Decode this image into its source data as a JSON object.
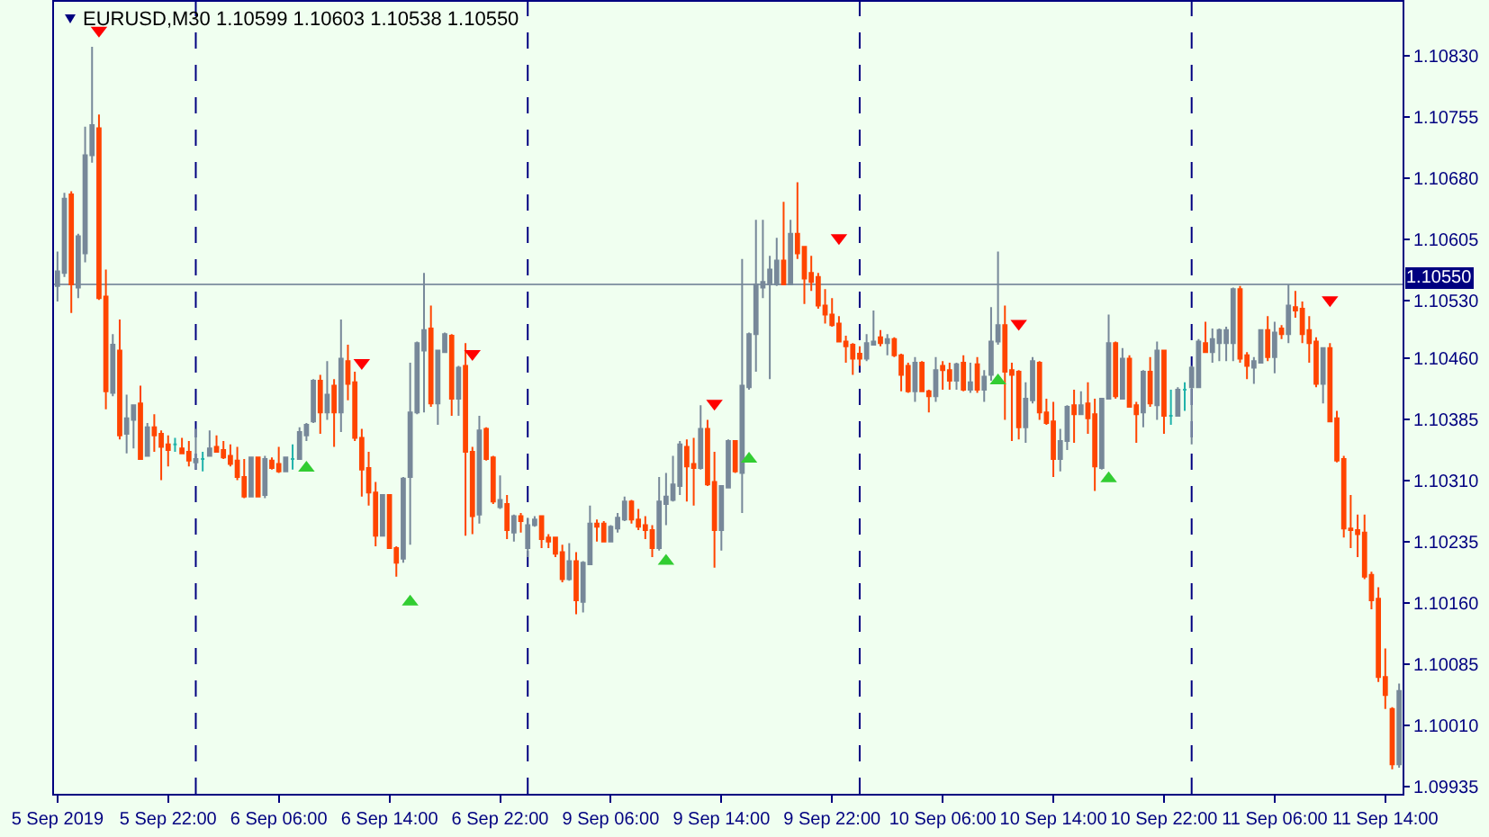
{
  "chart_data": {
    "type": "candlestick",
    "title": "EURUSD,M30 1.10599 1.10603 1.10538 1.10550",
    "categories": [
      "5 Sep 2019",
      null,
      null,
      null,
      null,
      null,
      null,
      null,
      null,
      null,
      null,
      null,
      null,
      null,
      null,
      null,
      "5 Sep 22:00",
      null,
      null,
      null,
      null,
      null,
      null,
      null,
      null,
      null,
      null,
      null,
      null,
      null,
      null,
      null,
      "6 Sep 06:00",
      null,
      null,
      null,
      null,
      null,
      null,
      null,
      null,
      null,
      null,
      null,
      null,
      null,
      null,
      null,
      "6 Sep 14:00",
      null,
      null,
      null,
      null,
      null,
      null,
      null,
      null,
      null,
      null,
      null,
      null,
      null,
      null,
      null,
      "6 Sep 22:00",
      null,
      null,
      null,
      null,
      null,
      null,
      null,
      null,
      null,
      null,
      null,
      null,
      null,
      null,
      null,
      "9 Sep 06:00",
      null,
      null,
      null,
      null,
      null,
      null,
      null,
      null,
      null,
      null,
      null,
      null,
      null,
      null,
      null,
      "9 Sep 14:00",
      null,
      null,
      null,
      null,
      null,
      null,
      null,
      null,
      null,
      null,
      null,
      null,
      null,
      null,
      null,
      "9 Sep 22:00",
      null,
      null,
      null,
      null,
      null,
      null,
      null,
      null,
      null,
      null,
      null,
      null,
      null,
      null,
      null,
      "10 Sep 06:00",
      null,
      null,
      null,
      null,
      null,
      null,
      null,
      null,
      null,
      null,
      null,
      null,
      null,
      null,
      null,
      "10 Sep 14:00",
      null,
      null,
      null,
      null,
      null,
      null,
      null,
      null,
      null,
      null,
      null,
      null,
      null,
      null,
      null,
      "10 Sep 22:00",
      null,
      null,
      null,
      null,
      null,
      null,
      null,
      null,
      null,
      null,
      null,
      null,
      null,
      null,
      null,
      "11 Sep 06:00",
      null,
      null,
      null,
      null,
      null,
      null,
      null,
      null,
      null,
      null,
      null,
      null,
      null,
      null,
      null,
      "11 Sep 14:00",
      null,
      null
    ],
    "ohlc": [
      [
        1.10548,
        1.1059,
        1.10529,
        1.10566
      ],
      [
        1.10564,
        1.10662,
        1.10559,
        1.10655
      ],
      [
        1.1066,
        1.10664,
        1.10515,
        1.1055
      ],
      [
        1.10546,
        1.10612,
        1.10533,
        1.10609
      ],
      [
        1.10588,
        1.10743,
        1.10577,
        1.10708
      ],
      [
        1.10708,
        1.10841,
        1.10699,
        1.10745
      ],
      [
        1.10741,
        1.10758,
        1.10531,
        1.10533
      ],
      [
        1.10535,
        1.10568,
        1.10397,
        1.10419
      ],
      [
        1.10417,
        1.10489,
        1.10413,
        1.10476
      ],
      [
        1.10469,
        1.10507,
        1.1036,
        1.10365
      ],
      [
        1.10367,
        1.10415,
        1.10343,
        1.10386
      ],
      [
        1.10384,
        1.10402,
        1.10349,
        1.10402
      ],
      [
        1.10404,
        1.10426,
        1.10336,
        1.10336
      ],
      [
        1.1034,
        1.1038,
        1.1034,
        1.10375
      ],
      [
        1.10375,
        1.10391,
        1.10345,
        1.10365
      ],
      [
        1.10367,
        1.10371,
        1.1031,
        1.10351
      ],
      [
        1.10354,
        1.10365,
        1.10327,
        1.10347
      ],
      [
        1.10354,
        1.10362,
        1.10345,
        1.10354
      ],
      [
        1.10349,
        1.10362,
        1.10343,
        1.10343
      ],
      [
        1.10345,
        1.10358,
        1.10327,
        1.10334
      ],
      [
        1.10332,
        1.10373,
        1.10323,
        1.10336
      ],
      [
        1.10336,
        1.10345,
        1.10321,
        1.10336
      ],
      [
        1.1034,
        1.10371,
        1.1034,
        1.10349
      ],
      [
        1.10351,
        1.10365,
        1.10345,
        1.10345
      ],
      [
        1.10347,
        1.10358,
        1.10336,
        1.10338
      ],
      [
        1.1034,
        1.10354,
        1.10327,
        1.1033
      ],
      [
        1.10334,
        1.10351,
        1.1031,
        1.10314
      ],
      [
        1.10314,
        1.10336,
        1.10288,
        1.1029
      ],
      [
        1.1029,
        1.10338,
        1.1029,
        1.10338
      ],
      [
        1.10338,
        1.10338,
        1.1029,
        1.1029
      ],
      [
        1.10292,
        1.1034,
        1.10288,
        1.10336
      ],
      [
        1.10334,
        1.10338,
        1.10323,
        1.10325
      ],
      [
        1.1033,
        1.10351,
        1.10319,
        1.10321
      ],
      [
        1.10321,
        1.10338,
        1.10321,
        1.10338
      ],
      [
        1.10336,
        1.10354,
        1.10323,
        1.10336
      ],
      [
        1.10336,
        1.10375,
        1.10336,
        1.10369
      ],
      [
        1.10365,
        1.1038,
        1.10358,
        1.10378
      ],
      [
        1.10382,
        1.10434,
        1.1038,
        1.10432
      ],
      [
        1.10432,
        1.10439,
        1.10367,
        1.10393
      ],
      [
        1.10393,
        1.10456,
        1.10384,
        1.10415
      ],
      [
        1.10426,
        1.10434,
        1.10351,
        1.10393
      ],
      [
        1.10393,
        1.10507,
        1.10369,
        1.10459
      ],
      [
        1.10456,
        1.10476,
        1.10408,
        1.10428
      ],
      [
        1.1043,
        1.10443,
        1.10358,
        1.10362
      ],
      [
        1.10362,
        1.10373,
        1.1029,
        1.10323
      ],
      [
        1.10325,
        1.10345,
        1.10279,
        1.10295
      ],
      [
        1.10295,
        1.10308,
        1.10229,
        1.10242
      ],
      [
        1.10242,
        1.10292,
        1.10242,
        1.10292
      ],
      [
        1.10292,
        1.10292,
        1.10227,
        1.10227
      ],
      [
        1.10227,
        1.10229,
        1.10192,
        1.10209
      ],
      [
        1.10214,
        1.10314,
        1.10209,
        1.10312
      ],
      [
        1.10314,
        1.10454,
        1.10231,
        1.10393
      ],
      [
        1.10393,
        1.1048,
        1.10391,
        1.10478
      ],
      [
        1.10469,
        1.10564,
        1.10393,
        1.10494
      ],
      [
        1.10496,
        1.10524,
        1.104,
        1.10404
      ],
      [
        1.10404,
        1.10469,
        1.10378,
        1.10469
      ],
      [
        1.10467,
        1.10491,
        1.10467,
        1.10489
      ],
      [
        1.10487,
        1.10489,
        1.10389,
        1.1041
      ],
      [
        1.1041,
        1.1045,
        1.10389,
        1.10448
      ],
      [
        1.1045,
        1.10478,
        1.10242,
        1.10345
      ],
      [
        1.10345,
        1.10351,
        1.10244,
        1.10266
      ],
      [
        1.10268,
        1.10389,
        1.10257,
        1.10371
      ],
      [
        1.10373,
        1.10375,
        1.10334,
        1.10336
      ],
      [
        1.10338,
        1.1034,
        1.10281,
        1.10284
      ],
      [
        1.10277,
        1.10316,
        1.10275,
        1.10286
      ],
      [
        1.10281,
        1.10292,
        1.10238,
        1.10249
      ],
      [
        1.10246,
        1.10268,
        1.10235,
        1.10266
      ],
      [
        1.10266,
        1.1027,
        1.10246,
        1.1026
      ],
      [
        1.10227,
        1.10264,
        1.10216,
        1.10255
      ],
      [
        1.10255,
        1.10266,
        1.10253,
        1.10262
      ],
      [
        1.10266,
        1.10266,
        1.10227,
        1.10238
      ],
      [
        1.1024,
        1.10244,
        1.10227,
        1.10235
      ],
      [
        1.1024,
        1.1024,
        1.10216,
        1.1022
      ],
      [
        1.10222,
        1.10231,
        1.10185,
        1.10189
      ],
      [
        1.10189,
        1.10233,
        1.10187,
        1.10211
      ],
      [
        1.10211,
        1.10222,
        1.10146,
        1.10163
      ],
      [
        1.10161,
        1.10211,
        1.10148,
        1.10209
      ],
      [
        1.10207,
        1.10279,
        1.10207,
        1.10257
      ],
      [
        1.10257,
        1.10262,
        1.10235,
        1.10253
      ],
      [
        1.10257,
        1.1026,
        1.10235,
        1.10235
      ],
      [
        1.10235,
        1.10255,
        1.10235,
        1.10253
      ],
      [
        1.10251,
        1.1027,
        1.10246,
        1.10264
      ],
      [
        1.10262,
        1.1029,
        1.1026,
        1.10284
      ],
      [
        1.10284,
        1.10286,
        1.10257,
        1.10262
      ],
      [
        1.10262,
        1.10275,
        1.10249,
        1.10253
      ],
      [
        1.10255,
        1.10266,
        1.10238,
        1.10249
      ],
      [
        1.10249,
        1.10255,
        1.10216,
        1.10227
      ],
      [
        1.10227,
        1.10314,
        1.10224,
        1.10284
      ],
      [
        1.10281,
        1.10319,
        1.10255,
        1.1029
      ],
      [
        1.10286,
        1.1034,
        1.10284,
        1.10305
      ],
      [
        1.10303,
        1.10358,
        1.10292,
        1.10354
      ],
      [
        1.10351,
        1.1036,
        1.10284,
        1.10327
      ],
      [
        1.1033,
        1.10362,
        1.10279,
        1.10325
      ],
      [
        1.10325,
        1.10402,
        1.10323,
        1.10373
      ],
      [
        1.10373,
        1.10384,
        1.10303,
        1.10305
      ],
      [
        1.10308,
        1.10345,
        1.10203,
        1.10249
      ],
      [
        1.10249,
        1.10303,
        1.10224,
        1.10303
      ],
      [
        1.10301,
        1.1036,
        1.10301,
        1.10358
      ],
      [
        1.10358,
        1.10358,
        1.10319,
        1.10321
      ],
      [
        1.10319,
        1.10581,
        1.1027,
        1.10426
      ],
      [
        1.10424,
        1.10491,
        1.10421,
        1.10489
      ],
      [
        1.10489,
        1.10629,
        1.10443,
        1.1055
      ],
      [
        1.10546,
        1.10629,
        1.10533,
        1.10553
      ],
      [
        1.1055,
        1.10585,
        1.10434,
        1.10568
      ],
      [
        1.1055,
        1.10607,
        1.10548,
        1.10579
      ],
      [
        1.10579,
        1.10651,
        1.1055,
        1.1055
      ],
      [
        1.1055,
        1.10629,
        1.1055,
        1.10612
      ],
      [
        1.10612,
        1.10675,
        1.10581,
        1.10588
      ],
      [
        1.10596,
        1.10596,
        1.10526,
        1.10557
      ],
      [
        1.10564,
        1.10585,
        1.10542,
        1.10553
      ],
      [
        1.10559,
        1.10564,
        1.1052,
        1.10524
      ],
      [
        1.10524,
        1.10544,
        1.10502,
        1.10513
      ],
      [
        1.10513,
        1.10533,
        1.10498,
        1.105
      ],
      [
        1.10502,
        1.10511,
        1.1048,
        1.1048
      ],
      [
        1.1048,
        1.10487,
        1.10454,
        1.10474
      ],
      [
        1.10476,
        1.10478,
        1.10439,
        1.10459
      ],
      [
        1.10465,
        1.10474,
        1.1045,
        1.10459
      ],
      [
        1.10459,
        1.10489,
        1.10456,
        1.10478
      ],
      [
        1.10476,
        1.10518,
        1.10476,
        1.1048
      ],
      [
        1.10485,
        1.10494,
        1.10474,
        1.10478
      ],
      [
        1.10478,
        1.10489,
        1.10463,
        1.10483
      ],
      [
        1.10483,
        1.10485,
        1.10461,
        1.10463
      ],
      [
        1.10463,
        1.10465,
        1.10419,
        1.10439
      ],
      [
        1.1045,
        1.10454,
        1.10417,
        1.10419
      ],
      [
        1.10419,
        1.10461,
        1.10406,
        1.10454
      ],
      [
        1.10454,
        1.10456,
        1.10419,
        1.10419
      ],
      [
        1.10419,
        1.10421,
        1.10393,
        1.10413
      ],
      [
        1.10413,
        1.10461,
        1.10406,
        1.10445
      ],
      [
        1.1045,
        1.10456,
        1.10421,
        1.10445
      ],
      [
        1.10445,
        1.10454,
        1.10421,
        1.10432
      ],
      [
        1.10432,
        1.10454,
        1.10421,
        1.10452
      ],
      [
        1.10454,
        1.10463,
        1.10419,
        1.10421
      ],
      [
        1.10421,
        1.10454,
        1.10417,
        1.1043
      ],
      [
        1.10452,
        1.10461,
        1.10417,
        1.10421
      ],
      [
        1.10421,
        1.10445,
        1.10406,
        1.10437
      ],
      [
        1.10439,
        1.10522,
        1.10432,
        1.1048
      ],
      [
        1.1048,
        1.1059,
        1.10476,
        1.105
      ],
      [
        1.105,
        1.10524,
        1.10384,
        1.10443
      ],
      [
        1.10445,
        1.10454,
        1.10358,
        1.10439
      ],
      [
        1.10443,
        1.10445,
        1.1036,
        1.10375
      ],
      [
        1.10375,
        1.1043,
        1.10356,
        1.1041
      ],
      [
        1.10408,
        1.10461,
        1.10404,
        1.10456
      ],
      [
        1.10454,
        1.10456,
        1.10384,
        1.10393
      ],
      [
        1.10393,
        1.1041,
        1.10378,
        1.1038
      ],
      [
        1.10382,
        1.10406,
        1.10314,
        1.10336
      ],
      [
        1.10336,
        1.10373,
        1.10321,
        1.10358
      ],
      [
        1.10358,
        1.10402,
        1.10347,
        1.104
      ],
      [
        1.10402,
        1.10421,
        1.10356,
        1.10391
      ],
      [
        1.10391,
        1.10419,
        1.10391,
        1.10402
      ],
      [
        1.10404,
        1.1043,
        1.10367,
        1.10386
      ],
      [
        1.10391,
        1.1041,
        1.10297,
        1.10327
      ],
      [
        1.10325,
        1.1041,
        1.10323,
        1.1041
      ],
      [
        1.1041,
        1.10513,
        1.1041,
        1.10478
      ],
      [
        1.10478,
        1.1048,
        1.1041,
        1.10413
      ],
      [
        1.1041,
        1.10472,
        1.1041,
        1.10459
      ],
      [
        1.10459,
        1.10463,
        1.104,
        1.104
      ],
      [
        1.10402,
        1.10406,
        1.10356,
        1.10391
      ],
      [
        1.10393,
        1.10445,
        1.10375,
        1.10443
      ],
      [
        1.10443,
        1.10461,
        1.104,
        1.10404
      ],
      [
        1.10402,
        1.1048,
        1.10384,
        1.10469
      ],
      [
        1.10469,
        1.10469,
        1.10367,
        1.10389
      ],
      [
        1.10389,
        1.10421,
        1.10378,
        1.10389
      ],
      [
        1.10389,
        1.10424,
        1.10389,
        1.10421
      ],
      [
        1.10421,
        1.1043,
        1.10395,
        1.10421
      ],
      [
        1.10424,
        1.1045,
        1.10354,
        1.10448
      ],
      [
        1.10424,
        1.10483,
        1.10424,
        1.1048
      ],
      [
        1.10478,
        1.10504,
        1.10467,
        1.10467
      ],
      [
        1.10467,
        1.10496,
        1.10454,
        1.10483
      ],
      [
        1.10478,
        1.10496,
        1.10456,
        1.10494
      ],
      [
        1.10478,
        1.10498,
        1.10456,
        1.10494
      ],
      [
        1.10478,
        1.10546,
        1.10456,
        1.10544
      ],
      [
        1.10544,
        1.10548,
        1.10454,
        1.10459
      ],
      [
        1.10463,
        1.10467,
        1.10434,
        1.1045
      ],
      [
        1.10448,
        1.10461,
        1.10428,
        1.10456
      ],
      [
        1.10454,
        1.10494,
        1.10454,
        1.10494
      ],
      [
        1.10494,
        1.10511,
        1.10456,
        1.10461
      ],
      [
        1.10461,
        1.10504,
        1.10441,
        1.10491
      ],
      [
        1.10496,
        1.105,
        1.10483,
        1.10489
      ],
      [
        1.10489,
        1.1055,
        1.10478,
        1.10524
      ],
      [
        1.10522,
        1.10542,
        1.10509,
        1.10518
      ],
      [
        1.1052,
        1.10529,
        1.10478,
        1.10489
      ],
      [
        1.10494,
        1.10511,
        1.10454,
        1.10478
      ],
      [
        1.1048,
        1.10485,
        1.10424,
        1.10428
      ],
      [
        1.10428,
        1.10472,
        1.10404,
        1.10472
      ],
      [
        1.10472,
        1.10478,
        1.10382,
        1.10382
      ],
      [
        1.10386,
        1.10395,
        1.10332,
        1.10334
      ],
      [
        1.10336,
        1.1034,
        1.1024,
        1.10251
      ],
      [
        1.10251,
        1.10292,
        1.10227,
        1.10249
      ],
      [
        1.10249,
        1.10268,
        1.10216,
        1.10244
      ],
      [
        1.10246,
        1.10268,
        1.10189,
        1.10192
      ],
      [
        1.10194,
        1.10198,
        1.10152,
        1.10163
      ],
      [
        1.10165,
        1.10179,
        1.10063,
        1.10069
      ],
      [
        1.10069,
        1.10104,
        1.1003,
        1.10047
      ],
      [
        1.1003,
        1.10032,
        1.09956,
        1.09962
      ],
      [
        1.09962,
        1.10061,
        1.09958,
        1.10052
      ]
    ],
    "colors": [
      "#778899",
      "#778899",
      "#ff4500",
      "#778899",
      "#778899",
      "#778899",
      "#ff4500",
      "#ff4500",
      "#778899",
      "#ff4500",
      "#778899",
      "#778899",
      "#ff4500",
      "#778899",
      "#ff4500",
      "#ff4500",
      "#ff4500",
      "#20b2aa",
      "#ff4500",
      "#ff4500",
      "#778899",
      "#20b2aa",
      "#778899",
      "#ff4500",
      "#ff4500",
      "#ff4500",
      "#ff4500",
      "#ff4500",
      "#778899",
      "#ff4500",
      "#778899",
      "#ff4500",
      "#ff4500",
      "#778899",
      "#20b2aa",
      "#778899",
      "#778899",
      "#778899",
      "#ff4500",
      "#778899",
      "#ff4500",
      "#778899",
      "#ff4500",
      "#ff4500",
      "#ff4500",
      "#ff4500",
      "#ff4500",
      "#778899",
      "#ff4500",
      "#ff4500",
      "#778899",
      "#778899",
      "#778899",
      "#778899",
      "#ff4500",
      "#778899",
      "#778899",
      "#ff4500",
      "#778899",
      "#ff4500",
      "#ff4500",
      "#778899",
      "#ff4500",
      "#ff4500",
      "#778899",
      "#ff4500",
      "#778899",
      "#ff4500",
      "#778899",
      "#778899",
      "#ff4500",
      "#ff4500",
      "#ff4500",
      "#ff4500",
      "#778899",
      "#ff4500",
      "#778899",
      "#778899",
      "#ff4500",
      "#ff4500",
      "#778899",
      "#778899",
      "#778899",
      "#ff4500",
      "#ff4500",
      "#ff4500",
      "#ff4500",
      "#778899",
      "#778899",
      "#778899",
      "#778899",
      "#ff4500",
      "#ff4500",
      "#778899",
      "#ff4500",
      "#ff4500",
      "#778899",
      "#778899",
      "#ff4500",
      "#778899",
      "#778899",
      "#778899",
      "#778899",
      "#778899",
      "#778899",
      "#ff4500",
      "#778899",
      "#ff4500",
      "#ff4500",
      "#ff4500",
      "#ff4500",
      "#ff4500",
      "#ff4500",
      "#ff4500",
      "#ff4500",
      "#ff4500",
      "#ff4500",
      "#778899",
      "#778899",
      "#ff4500",
      "#778899",
      "#ff4500",
      "#ff4500",
      "#ff4500",
      "#778899",
      "#ff4500",
      "#ff4500",
      "#778899",
      "#ff4500",
      "#ff4500",
      "#778899",
      "#ff4500",
      "#778899",
      "#ff4500",
      "#778899",
      "#778899",
      "#778899",
      "#ff4500",
      "#ff4500",
      "#ff4500",
      "#778899",
      "#778899",
      "#ff4500",
      "#ff4500",
      "#ff4500",
      "#778899",
      "#778899",
      "#ff4500",
      "#778899",
      "#ff4500",
      "#ff4500",
      "#778899",
      "#778899",
      "#ff4500",
      "#778899",
      "#ff4500",
      "#ff4500",
      "#778899",
      "#ff4500",
      "#778899",
      "#ff4500",
      "#20b2aa",
      "#778899",
      "#20b2aa",
      "#778899",
      "#778899",
      "#ff4500",
      "#778899",
      "#778899",
      "#778899",
      "#778899",
      "#ff4500",
      "#ff4500",
      "#778899",
      "#778899",
      "#ff4500",
      "#778899",
      "#ff4500",
      "#778899",
      "#ff4500",
      "#ff4500",
      "#ff4500",
      "#ff4500",
      "#778899",
      "#ff4500",
      "#ff4500",
      "#ff4500",
      "#ff4500",
      "#ff4500",
      "#ff4500",
      "#ff4500",
      "#ff4500",
      "#ff4500",
      "#ff4500",
      "#778899"
    ],
    "series": [
      {
        "type": "scatter",
        "color": "#ff0000",
        "values": [
          null,
          null,
          null,
          null,
          null,
          null,
          1.10861,
          null,
          null,
          null,
          null,
          null,
          null,
          null,
          null,
          null,
          null,
          null,
          null,
          null,
          null,
          null,
          null,
          null,
          null,
          null,
          null,
          null,
          null,
          null,
          null,
          null,
          null,
          null,
          null,
          null,
          null,
          null,
          null,
          null,
          null,
          null,
          null,
          null,
          1.10454,
          null,
          null,
          null,
          null,
          null,
          null,
          null,
          null,
          null,
          null,
          null,
          null,
          null,
          null,
          null,
          1.10465,
          null,
          null,
          null,
          null,
          null,
          null,
          null,
          null,
          null,
          null,
          null,
          null,
          null,
          null,
          null,
          null,
          null,
          null,
          null,
          null,
          null,
          null,
          null,
          null,
          null,
          null,
          null,
          null,
          null,
          null,
          null,
          null,
          null,
          null,
          1.10404,
          null,
          null,
          null,
          null,
          null,
          null,
          null,
          null,
          null,
          null,
          null,
          null,
          null,
          null,
          null,
          null,
          null,
          1.10607,
          null,
          null,
          null,
          null,
          null,
          null,
          null,
          null,
          null,
          null,
          null,
          null,
          null,
          null,
          null,
          null,
          null,
          null,
          null,
          null,
          null,
          null,
          null,
          null,
          null,
          1.10502,
          null,
          null,
          null,
          null,
          null,
          null,
          null,
          null,
          null,
          null,
          null,
          null,
          null,
          null,
          null,
          null,
          null,
          null,
          null,
          null,
          null,
          null,
          null,
          null,
          null,
          null,
          null,
          null,
          null,
          null,
          null,
          null,
          null,
          null,
          null,
          null,
          null,
          null,
          null,
          null,
          null,
          null,
          null,
          null,
          1.10531,
          null,
          null,
          null,
          null,
          null,
          null,
          null,
          null,
          null,
          null
        ]
      },
      {
        "type": "scatter",
        "color": "#32cd32",
        "values": [
          null,
          null,
          null,
          null,
          null,
          null,
          null,
          null,
          null,
          null,
          null,
          null,
          null,
          null,
          null,
          null,
          null,
          null,
          null,
          null,
          null,
          null,
          null,
          null,
          null,
          null,
          null,
          null,
          null,
          null,
          null,
          null,
          null,
          null,
          null,
          null,
          1.10325,
          null,
          null,
          null,
          null,
          null,
          null,
          null,
          null,
          null,
          null,
          null,
          null,
          null,
          null,
          1.10161,
          null,
          null,
          null,
          null,
          null,
          null,
          null,
          null,
          null,
          null,
          null,
          null,
          null,
          null,
          null,
          null,
          null,
          null,
          null,
          null,
          null,
          null,
          null,
          null,
          null,
          null,
          null,
          null,
          null,
          null,
          null,
          null,
          null,
          null,
          null,
          null,
          1.10211,
          null,
          null,
          null,
          null,
          null,
          null,
          null,
          null,
          null,
          null,
          null,
          1.10336,
          null,
          null,
          null,
          null,
          null,
          null,
          null,
          null,
          null,
          null,
          null,
          null,
          null,
          null,
          null,
          null,
          null,
          null,
          null,
          null,
          null,
          null,
          null,
          null,
          null,
          null,
          null,
          null,
          null,
          null,
          null,
          null,
          null,
          null,
          null,
          1.10432,
          null,
          null,
          null,
          null,
          null,
          null,
          null,
          null,
          null,
          null,
          null,
          null,
          null,
          null,
          null,
          1.10312,
          null,
          null,
          null,
          null,
          null,
          null,
          null,
          null,
          null,
          null,
          null,
          null,
          null,
          null,
          null,
          null,
          null,
          null,
          null,
          null,
          null,
          null,
          null,
          null,
          null,
          null,
          null,
          null,
          null,
          null,
          null,
          null,
          null,
          null,
          null,
          null,
          null,
          null,
          null,
          null,
          null,
          null
        ]
      }
    ],
    "marker": "triangle",
    "ylim": [
      1.09926,
      1.10896
    ],
    "yticks": [
      1.09935,
      {
        "value": 1.1001,
        "label": "1.10010"
      },
      1.10085,
      {
        "value": 1.1016,
        "label": "1.10160"
      },
      1.10235,
      {
        "value": 1.1031,
        "label": "1.10310"
      },
      1.10385,
      {
        "value": 1.1046,
        "label": "1.10460"
      },
      {
        "value": 1.1053,
        "label": "1.10530"
      },
      1.10605,
      {
        "value": 1.1068,
        "label": "1.10680"
      },
      1.10755,
      {
        "value": 1.1083,
        "label": "1.10830"
      }
    ],
    "ref_lines": [
      {
        "axis": "y",
        "value": 1.1055,
        "label": "1.10550",
        "color": "#8a9aa8"
      }
    ]
  }
}
